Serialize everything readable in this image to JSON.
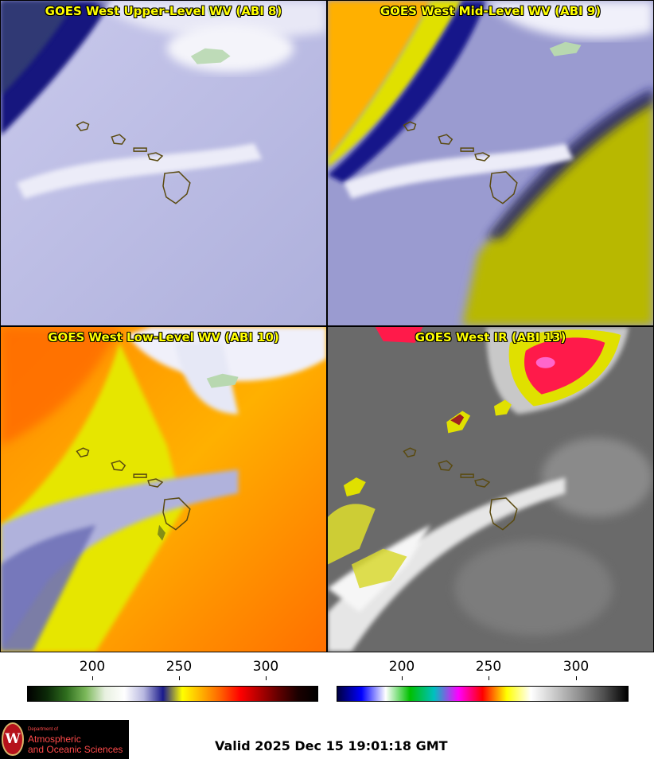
{
  "panels": [
    {
      "title": "GOES West Upper-Level WV (ABI 8)"
    },
    {
      "title": "GOES West Mid-Level WV (ABI 9)"
    },
    {
      "title": "GOES West Low-Level WV (ABI 10)"
    },
    {
      "title": "GOES West IR (ABI 13)"
    }
  ],
  "colorbars": [
    {
      "name": "water-vapor",
      "ticks": [
        "200",
        "250",
        "300"
      ],
      "colors": [
        "#000000",
        "#0c2a08",
        "#2f6e1e",
        "#7bb85a",
        "#e8f0e0",
        "#ffffff",
        "#b8b8e0",
        "#1a1a8c",
        "#ffff00",
        "#ffb000",
        "#ff6000",
        "#ff0000",
        "#b00000",
        "#600000",
        "#1a0000",
        "#000000"
      ]
    },
    {
      "name": "infrared",
      "ticks": [
        "200",
        "250",
        "300"
      ],
      "colors": [
        "#000040",
        "#0000ff",
        "#ffffff",
        "#00c000",
        "#00c0c0",
        "#ff00ff",
        "#ff0000",
        "#ffff00",
        "#ffffff",
        "#c8c8c8",
        "#909090",
        "#505050",
        "#000000"
      ]
    }
  ],
  "logo": {
    "seal_letter": "W",
    "department": "Department of",
    "line1": "Atmospheric",
    "line2": "and Oceanic Sciences"
  },
  "valid_time": "Valid 2025 Dec 15 19:01:18 GMT"
}
